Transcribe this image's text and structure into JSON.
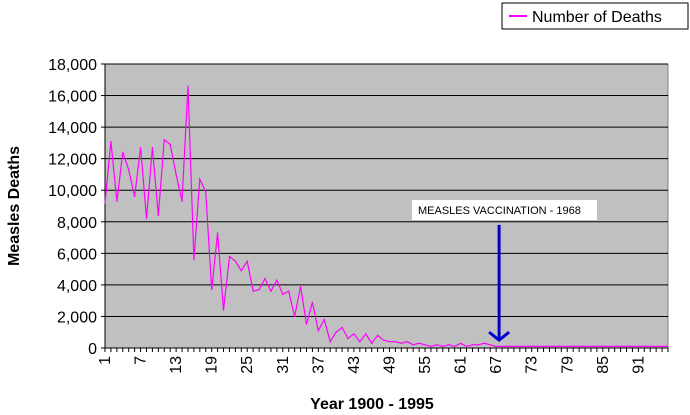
{
  "chart_data": {
    "type": "line",
    "xlabel": "Year 1900 - 1995",
    "ylabel": "Measles Deaths",
    "ylim": [
      0,
      18000
    ],
    "yticks": [
      0,
      2000,
      4000,
      6000,
      8000,
      10000,
      12000,
      14000,
      16000,
      18000
    ],
    "ytick_labels": [
      "0",
      "2,000",
      "4,000",
      "6,000",
      "8,000",
      "10,000",
      "12,000",
      "14,000",
      "16,000",
      "18,000"
    ],
    "xlim": [
      1,
      96
    ],
    "xtick_labels": [
      "1",
      "7",
      "13",
      "19",
      "25",
      "31",
      "37",
      "43",
      "49",
      "55",
      "61",
      "67",
      "73",
      "79",
      "85",
      "91"
    ],
    "grid": true,
    "legend_position": "top-right",
    "background_color": "#c0c0c0",
    "line_color": "#ff00ff",
    "annotation_color": "#0000cc",
    "series": [
      {
        "name": "Number of Deaths",
        "x": [
          1,
          2,
          3,
          4,
          5,
          6,
          7,
          8,
          9,
          10,
          11,
          12,
          13,
          14,
          15,
          16,
          17,
          18,
          19,
          20,
          21,
          22,
          23,
          24,
          25,
          26,
          27,
          28,
          29,
          30,
          31,
          32,
          33,
          34,
          35,
          36,
          37,
          38,
          39,
          40,
          41,
          42,
          43,
          44,
          45,
          46,
          47,
          48,
          49,
          50,
          51,
          52,
          53,
          54,
          55,
          56,
          57,
          58,
          59,
          60,
          61,
          62,
          63,
          64,
          65,
          66,
          67,
          68,
          69,
          70,
          71,
          72,
          73,
          74,
          75,
          76,
          77,
          78,
          79,
          80,
          81,
          82,
          83,
          84,
          85,
          86,
          87,
          88,
          89,
          90,
          91,
          92,
          93,
          94,
          95,
          96
        ],
        "values": [
          9200,
          13100,
          9300,
          12400,
          11300,
          9600,
          12700,
          8200,
          12700,
          8400,
          13200,
          12900,
          11000,
          9300,
          16600,
          5600,
          10700,
          9900,
          3700,
          7300,
          2400,
          5800,
          5500,
          4900,
          5500,
          3600,
          3700,
          4400,
          3600,
          4300,
          3400,
          3600,
          2000,
          3900,
          1500,
          2900,
          1100,
          1800,
          400,
          1000,
          1300,
          600,
          900,
          400,
          900,
          300,
          800,
          500,
          400,
          400,
          300,
          400,
          200,
          300,
          200,
          100,
          200,
          100,
          200,
          100,
          300,
          100,
          200,
          200,
          300,
          200,
          100,
          100,
          100,
          100,
          100,
          100,
          100,
          100,
          100,
          100,
          100,
          100,
          100,
          100,
          100,
          100,
          100,
          100,
          100,
          100,
          100,
          100,
          100,
          100,
          100,
          100,
          100,
          100,
          100,
          100
        ]
      }
    ],
    "annotations": [
      {
        "text": "MEASLES VACCINATION - 1968",
        "x": 67.5,
        "arrow_from_y": 7800,
        "arrow_to_y": 500
      }
    ]
  }
}
